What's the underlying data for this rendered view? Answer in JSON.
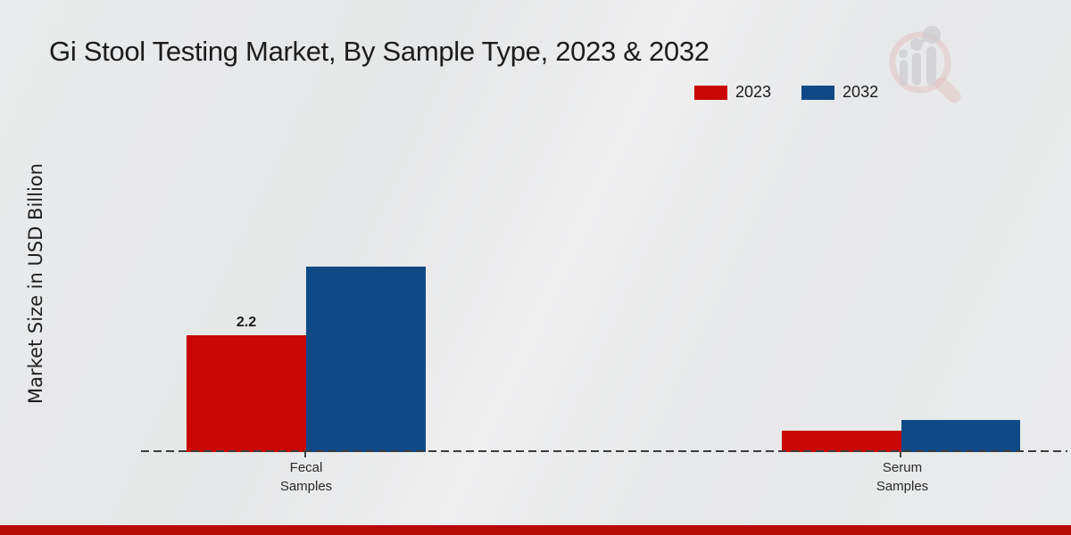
{
  "header": {
    "title": "Gi Stool Testing Market, By Sample Type, 2023 & 2032",
    "logo": "magnifier-growth-chart-logo"
  },
  "legend": {
    "position": "top-right",
    "items": [
      {
        "label": "2023",
        "color": "#c90703"
      },
      {
        "label": "2032",
        "color": "#0f4a87"
      }
    ]
  },
  "footer_bar": {
    "color": "#b80a06"
  },
  "chart_data": {
    "type": "bar",
    "title": "Gi Stool Testing Market, By Sample Type, 2023 & 2032",
    "xlabel": "",
    "ylabel": "Market Size in USD Billion",
    "categories": [
      "Fecal Samples",
      "Serum Samples"
    ],
    "series": [
      {
        "name": "2023",
        "color": "#c90703",
        "values": [
          2.2,
          0.4
        ]
      },
      {
        "name": "2032",
        "color": "#0f4a87",
        "values": [
          3.5,
          0.6
        ]
      }
    ],
    "bar_labels": [
      {
        "series": "2023",
        "category": "Fecal Samples",
        "text": "2.2"
      }
    ],
    "ylim": [
      0,
      4
    ],
    "grid": false,
    "baseline_style": "dashed",
    "legend_position": "top-right",
    "axis_ticks_visible": false
  }
}
